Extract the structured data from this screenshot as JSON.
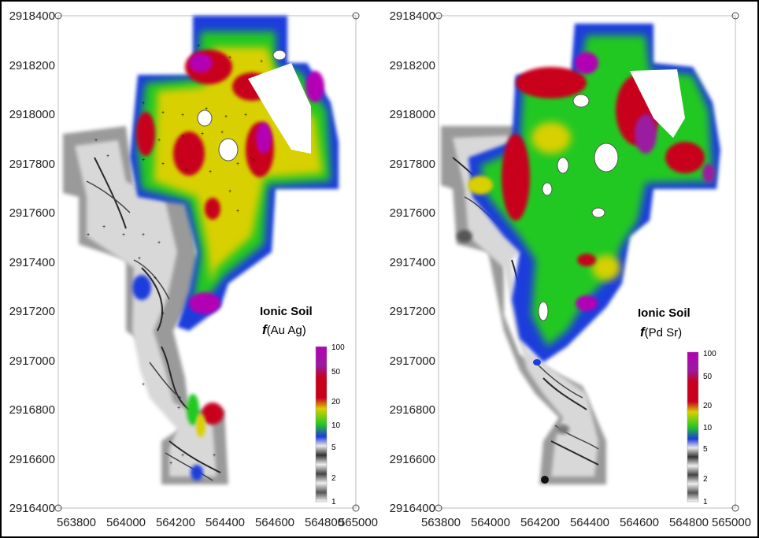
{
  "maps": [
    {
      "title": "Ionic Soil",
      "subtitle_f": "f",
      "subtitle_rest": "(Au Ag)",
      "y_ticks": [
        "2918400",
        "2918200",
        "2918000",
        "2917800",
        "2917600",
        "2917400",
        "2917200",
        "2917000",
        "2916800",
        "2916600",
        "2916400"
      ],
      "x_ticks": [
        "563800",
        "564000",
        "564200",
        "564400",
        "564600",
        "564800",
        "565000"
      ],
      "legend": [
        "100",
        "50",
        "20",
        "10",
        "5",
        "2",
        "1"
      ]
    },
    {
      "title": "Ionic Soil",
      "subtitle_f": "f",
      "subtitle_rest": "(Pd Sr)",
      "y_ticks": [
        "2918400",
        "2918200",
        "2918000",
        "2917800",
        "2917600",
        "2917400",
        "2917200",
        "2917000",
        "2916800",
        "2916600",
        "2916400"
      ],
      "x_ticks": [
        "563800",
        "564000",
        "564200",
        "564400",
        "564600",
        "564800",
        "565000"
      ],
      "legend": [
        "100",
        "50",
        "20",
        "10",
        "5",
        "2",
        "1"
      ]
    }
  ],
  "colors": {
    "magenta": "#b400b4",
    "purple": "#7a1a8a",
    "red": "#c8001e",
    "yellow": "#d8d000",
    "green": "#22c822",
    "blue": "#1e3cdc",
    "cyan": "#2ab4e8",
    "gray": "#6e6e6e"
  }
}
